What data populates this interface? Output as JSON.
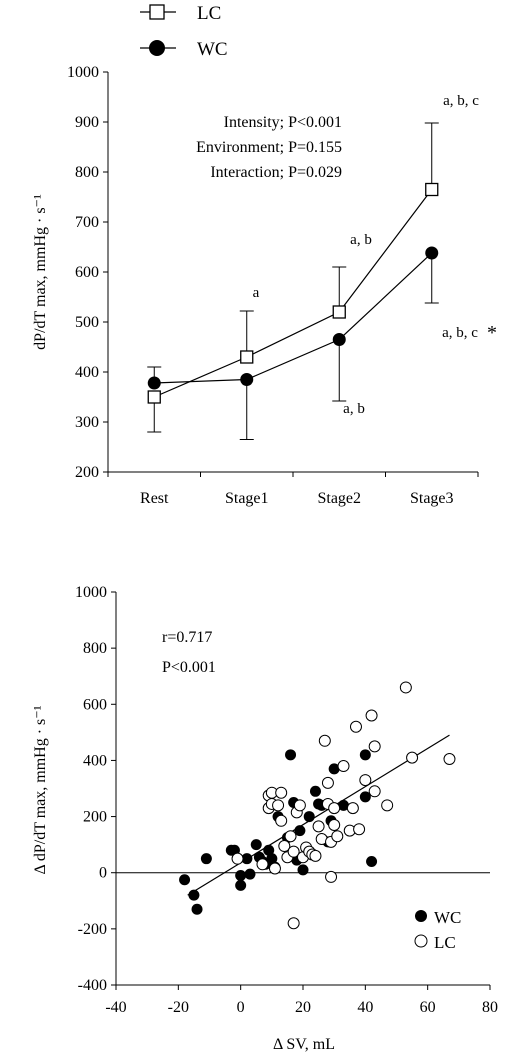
{
  "chart_data": [
    {
      "type": "line",
      "xlabel": "",
      "ylabel": "dP/dT max, mmHg · s⁻¹",
      "ylim": [
        200,
        1000
      ],
      "yticks": [
        200,
        300,
        400,
        500,
        600,
        700,
        800,
        900,
        1000
      ],
      "categories": [
        "Rest",
        "Stage1",
        "Stage2",
        "Stage3"
      ],
      "legend": [
        "LC",
        "WC"
      ],
      "legend_position": "top-left",
      "series": [
        {
          "name": "LC",
          "marker": "open-square",
          "values": [
            350,
            430,
            520,
            765
          ],
          "error_sd": [
            70,
            92,
            90,
            133
          ],
          "error_direction": "down-up-up-up"
        },
        {
          "name": "WC",
          "marker": "filled-circle",
          "values": [
            378,
            385,
            465,
            638
          ],
          "error_sd": [
            32,
            120,
            123,
            100
          ],
          "error_direction": "up-down-down-down"
        }
      ],
      "stats_text": [
        "Intensity; P<0.001",
        "Environment; P=0.155",
        "Interaction; P=0.029"
      ],
      "annotations": [
        {
          "text": "a",
          "category": "Stage1",
          "series": "LC",
          "position": "above"
        },
        {
          "text": "a, b",
          "category": "Stage2",
          "series": "LC",
          "position": "above"
        },
        {
          "text": "a, b, c",
          "category": "Stage3",
          "series": "LC",
          "position": "above"
        },
        {
          "text": "a, b",
          "category": "Stage2",
          "series": "WC",
          "position": "below"
        },
        {
          "text": "a, b, c",
          "category": "Stage3",
          "series": "WC",
          "position": "below"
        },
        {
          "text": "*",
          "category": "Stage3",
          "series": "WC",
          "position": "below-right"
        }
      ]
    },
    {
      "type": "scatter",
      "xlabel": "Δ SV, mL",
      "ylabel": "Δ dP/dT max, mmHg · s⁻¹",
      "xlim": [
        -40,
        80
      ],
      "ylim": [
        -400,
        1000
      ],
      "xticks": [
        -40,
        -20,
        0,
        20,
        40,
        60,
        80
      ],
      "yticks": [
        -400,
        -200,
        0,
        200,
        400,
        600,
        800,
        1000
      ],
      "stats_text": [
        "r=0.717",
        "P<0.001"
      ],
      "legend_position": "bottom-right",
      "regression_line": {
        "x": [
          -17,
          67
        ],
        "y": [
          -80,
          490
        ]
      },
      "series": [
        {
          "name": "WC",
          "marker": "filled-circle",
          "points": [
            [
              -18,
              -25
            ],
            [
              -15,
              -80
            ],
            [
              -14,
              -130
            ],
            [
              -11,
              50
            ],
            [
              -3,
              80
            ],
            [
              -2,
              80
            ],
            [
              0,
              -10
            ],
            [
              0,
              -45
            ],
            [
              2,
              50
            ],
            [
              3,
              -5
            ],
            [
              5,
              100
            ],
            [
              6,
              55
            ],
            [
              7,
              40
            ],
            [
              8,
              30
            ],
            [
              9,
              80
            ],
            [
              10,
              50
            ],
            [
              11,
              20
            ],
            [
              12,
              200
            ],
            [
              15,
              125
            ],
            [
              16,
              420
            ],
            [
              17,
              250
            ],
            [
              18,
              45
            ],
            [
              19,
              150
            ],
            [
              20,
              10
            ],
            [
              22,
              200
            ],
            [
              24,
              290
            ],
            [
              25,
              245
            ],
            [
              26,
              240
            ],
            [
              28,
              110
            ],
            [
              29,
              185
            ],
            [
              30,
              370
            ],
            [
              33,
              240
            ],
            [
              40,
              420
            ],
            [
              40,
              270
            ],
            [
              42,
              40
            ]
          ]
        },
        {
          "name": "LC",
          "marker": "open-circle",
          "points": [
            [
              -1,
              50
            ],
            [
              7,
              30
            ],
            [
              9,
              275
            ],
            [
              9,
              230
            ],
            [
              10,
              285
            ],
            [
              10,
              245
            ],
            [
              11,
              15
            ],
            [
              12,
              240
            ],
            [
              13,
              285
            ],
            [
              13,
              185
            ],
            [
              14,
              95
            ],
            [
              15,
              55
            ],
            [
              16,
              130
            ],
            [
              17,
              75
            ],
            [
              17,
              -180
            ],
            [
              18,
              215
            ],
            [
              19,
              240
            ],
            [
              20,
              55
            ],
            [
              21,
              90
            ],
            [
              22,
              75
            ],
            [
              23,
              65
            ],
            [
              24,
              60
            ],
            [
              25,
              165
            ],
            [
              26,
              120
            ],
            [
              27,
              470
            ],
            [
              28,
              245
            ],
            [
              28,
              320
            ],
            [
              29,
              -15
            ],
            [
              29,
              110
            ],
            [
              30,
              230
            ],
            [
              30,
              170
            ],
            [
              31,
              130
            ],
            [
              33,
              380
            ],
            [
              35,
              150
            ],
            [
              36,
              230
            ],
            [
              37,
              520
            ],
            [
              38,
              155
            ],
            [
              40,
              330
            ],
            [
              42,
              560
            ],
            [
              43,
              450
            ],
            [
              43,
              290
            ],
            [
              47,
              240
            ],
            [
              53,
              660
            ],
            [
              55,
              410
            ],
            [
              67,
              405
            ]
          ]
        }
      ]
    }
  ]
}
